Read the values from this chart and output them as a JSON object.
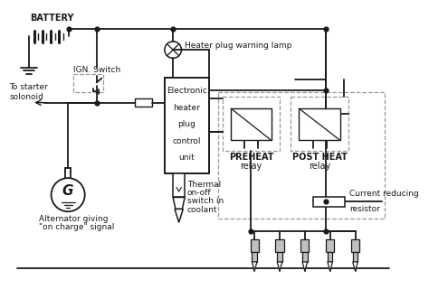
{
  "bg_color": "#ffffff",
  "line_color": "#1a1a1a",
  "dash_color": "#999999",
  "light_gray": "#c0c0c0",
  "figsize": [
    4.74,
    3.2
  ],
  "dpi": 100,
  "labels": {
    "battery": "BATTERY",
    "heater_lamp": "Heater plug warning lamp",
    "ign_switch": "IGN. Switch",
    "to_starter": "To starter\nsolonoid",
    "preheat": "PREHEAT\nrelay",
    "post_heat": "POST HEAT\nrelay",
    "alternator_line1": "Alternator giving",
    "alternator_line2": "\"on charge\" signal",
    "thermal_line1": "Thermal",
    "thermal_line2": "on-off",
    "thermal_line3": "switch in",
    "thermal_line4": "coolant",
    "current_res1": "Current reducing",
    "current_res2": "resistor",
    "cu_text": [
      "Electronic",
      "heater",
      "plug",
      "control",
      "unit"
    ]
  }
}
